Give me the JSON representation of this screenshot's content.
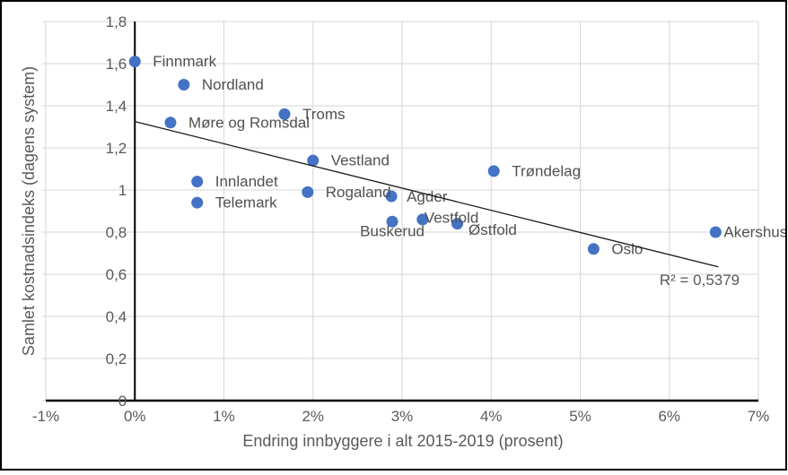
{
  "window": {
    "background": "#ffffff",
    "frame_color": "#000000"
  },
  "chart_data": {
    "type": "scatter",
    "title": "",
    "xlabel": "Endring innbyggere i alt 2015-2019 (prosent)",
    "ylabel": "Samlet kostnadsindeks (dagens system)",
    "xlim": [
      -1,
      7
    ],
    "ylim": [
      0,
      1.8
    ],
    "grid": true,
    "legend": "none",
    "x_ticks": [
      {
        "value": -1,
        "label": "-1%"
      },
      {
        "value": 0,
        "label": "0%"
      },
      {
        "value": 1,
        "label": "1%"
      },
      {
        "value": 2,
        "label": "2%"
      },
      {
        "value": 3,
        "label": "3%"
      },
      {
        "value": 4,
        "label": "4%"
      },
      {
        "value": 5,
        "label": "5%"
      },
      {
        "value": 6,
        "label": "6%"
      },
      {
        "value": 7,
        "label": "7%"
      }
    ],
    "y_ticks": [
      {
        "value": 0,
        "label": "0"
      },
      {
        "value": 0.2,
        "label": "0,2"
      },
      {
        "value": 0.4,
        "label": "0,4"
      },
      {
        "value": 0.6,
        "label": "0,6"
      },
      {
        "value": 0.8,
        "label": "0,8"
      },
      {
        "value": 1.0,
        "label": "1"
      },
      {
        "value": 1.2,
        "label": "1,2"
      },
      {
        "value": 1.4,
        "label": "1,4"
      },
      {
        "value": 1.6,
        "label": "1,6"
      },
      {
        "value": 1.8,
        "label": "1,8"
      }
    ],
    "points": [
      {
        "name": "Finnmark",
        "x": 0.0,
        "y": 1.61,
        "label_pos": "right"
      },
      {
        "name": "Nordland",
        "x": 0.55,
        "y": 1.5,
        "label_pos": "right"
      },
      {
        "name": "Troms",
        "x": 1.68,
        "y": 1.36,
        "label_pos": "right"
      },
      {
        "name": "Møre og Romsdal",
        "x": 0.4,
        "y": 1.32,
        "label_pos": "right"
      },
      {
        "name": "Vestland",
        "x": 2.0,
        "y": 1.14,
        "label_pos": "right"
      },
      {
        "name": "Trøndelag",
        "x": 4.03,
        "y": 1.09,
        "label_pos": "right"
      },
      {
        "name": "Innlandet",
        "x": 0.7,
        "y": 1.04,
        "label_pos": "right"
      },
      {
        "name": "Rogaland",
        "x": 1.94,
        "y": 0.99,
        "label_pos": "right"
      },
      {
        "name": "Agder",
        "x": 2.88,
        "y": 0.97,
        "label_pos": "right-near"
      },
      {
        "name": "Telemark",
        "x": 0.7,
        "y": 0.94,
        "label_pos": "right"
      },
      {
        "name": "Vestfold",
        "x": 3.23,
        "y": 0.86,
        "label_pos": "overlap-right"
      },
      {
        "name": "Buskerud",
        "x": 2.89,
        "y": 0.85,
        "label_pos": "below"
      },
      {
        "name": "Østfold",
        "x": 3.62,
        "y": 0.84,
        "label_pos": "below-right"
      },
      {
        "name": "Akershus",
        "x": 6.52,
        "y": 0.8,
        "label_pos": "close-right"
      },
      {
        "name": "Oslo",
        "x": 5.15,
        "y": 0.72,
        "label_pos": "right"
      }
    ],
    "trendline": {
      "x_start": 0.0,
      "y_start": 1.325,
      "x_end": 6.55,
      "y_end": 0.635
    },
    "annotation": {
      "text": "R² = 0,5379",
      "x": 5.89,
      "y": 0.55
    },
    "colors": {
      "point": "#4472C4",
      "grid": "#d6d6d6",
      "axis": "#000000",
      "trend": "#1a1a1a",
      "tick_text": "#595959",
      "label_text": "#505050"
    }
  }
}
